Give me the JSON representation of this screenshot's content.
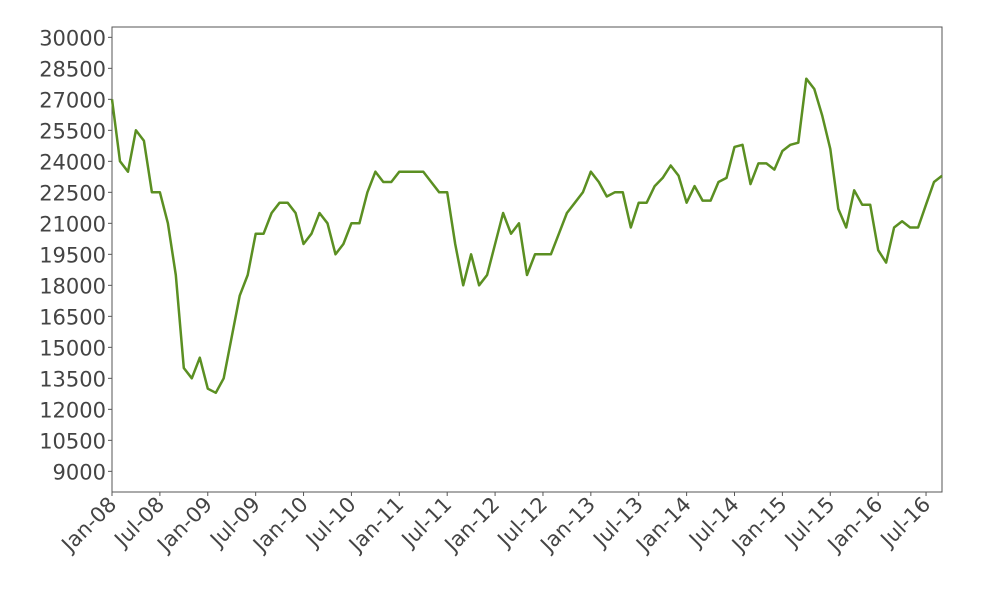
{
  "chart_data": {
    "type": "line",
    "x": [
      "Jan-08",
      "Feb-08",
      "Mar-08",
      "Apr-08",
      "May-08",
      "Jun-08",
      "Jul-08",
      "Aug-08",
      "Sep-08",
      "Oct-08",
      "Nov-08",
      "Dec-08",
      "Jan-09",
      "Feb-09",
      "Mar-09",
      "Apr-09",
      "May-09",
      "Jun-09",
      "Jul-09",
      "Aug-09",
      "Sep-09",
      "Oct-09",
      "Nov-09",
      "Dec-09",
      "Jan-10",
      "Feb-10",
      "Mar-10",
      "Apr-10",
      "May-10",
      "Jun-10",
      "Jul-10",
      "Aug-10",
      "Sep-10",
      "Oct-10",
      "Nov-10",
      "Dec-10",
      "Jan-11",
      "Feb-11",
      "Mar-11",
      "Apr-11",
      "May-11",
      "Jun-11",
      "Jul-11",
      "Aug-11",
      "Sep-11",
      "Oct-11",
      "Nov-11",
      "Dec-11",
      "Jan-12",
      "Feb-12",
      "Mar-12",
      "Apr-12",
      "May-12",
      "Jun-12",
      "Jul-12",
      "Aug-12",
      "Sep-12",
      "Oct-12",
      "Nov-12",
      "Dec-12",
      "Jan-13",
      "Feb-13",
      "Mar-13",
      "Apr-13",
      "May-13",
      "Jun-13",
      "Jul-13",
      "Aug-13",
      "Sep-13",
      "Oct-13",
      "Nov-13",
      "Dec-13",
      "Jan-14",
      "Feb-14",
      "Mar-14",
      "Apr-14",
      "May-14",
      "Jun-14",
      "Jul-14",
      "Aug-14",
      "Sep-14",
      "Oct-14",
      "Nov-14",
      "Dec-14",
      "Jan-15",
      "Feb-15",
      "Mar-15",
      "Apr-15",
      "May-15",
      "Jun-15",
      "Jul-15",
      "Aug-15",
      "Sep-15",
      "Oct-15",
      "Nov-15",
      "Dec-15",
      "Jan-16",
      "Feb-16",
      "Mar-16",
      "Apr-16",
      "May-16",
      "Jun-16",
      "Jul-16",
      "Aug-16",
      "Sep-16"
    ],
    "values": [
      27000,
      24000,
      23500,
      25500,
      25000,
      22500,
      22500,
      21000,
      18500,
      14000,
      13500,
      14500,
      13000,
      12800,
      13500,
      15500,
      17500,
      18500,
      20500,
      20500,
      21500,
      22000,
      22000,
      21500,
      20000,
      20500,
      21500,
      21000,
      19500,
      20000,
      21000,
      21000,
      22500,
      23500,
      23000,
      23000,
      23500,
      23500,
      23500,
      23500,
      23000,
      22500,
      22500,
      20000,
      18000,
      19500,
      18000,
      18500,
      20000,
      21500,
      20500,
      21000,
      18500,
      19500,
      19500,
      19500,
      20500,
      21500,
      22000,
      22500,
      23500,
      23000,
      22300,
      22500,
      22500,
      20800,
      22000,
      22000,
      22800,
      23200,
      23800,
      23300,
      22000,
      22800,
      22100,
      22100,
      23000,
      23200,
      24700,
      24800,
      22900,
      23900,
      23900,
      23600,
      24500,
      24800,
      24900,
      28000,
      27500,
      26200,
      24600,
      21700,
      20800,
      22600,
      21900,
      21900,
      19700,
      19100,
      20800,
      21100,
      20800,
      20800,
      21900,
      23000,
      23300
    ],
    "color": "#5b8f22",
    "ylim": [
      8000,
      30500
    ],
    "yticks": [
      9000,
      10500,
      12000,
      13500,
      15000,
      16500,
      18000,
      19500,
      21000,
      22500,
      24000,
      25500,
      27000,
      28500,
      30000
    ],
    "xticks": [
      "Jan-08",
      "Jul-08",
      "Jan-09",
      "Jul-09",
      "Jan-10",
      "Jul-10",
      "Jan-11",
      "Jul-11",
      "Jan-12",
      "Jul-12",
      "Jan-13",
      "Jul-13",
      "Jan-14",
      "Jul-14",
      "Jan-15",
      "Jul-15",
      "Jan-16",
      "Jul-16"
    ]
  }
}
